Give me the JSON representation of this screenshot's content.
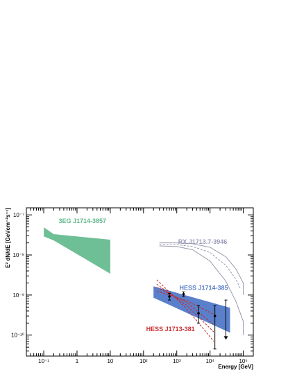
{
  "chart_data": {
    "type": "line",
    "xlabel": "Energy [GeV]",
    "ylabel": "E² dN/dE [GeVcm⁻²s⁻¹]",
    "xscale": "log",
    "yscale": "log",
    "xlim": [
      0.03,
      200000
    ],
    "ylim": [
      3e-11,
      1.5e-07
    ],
    "grid": false,
    "x_ticks": [
      {
        "v": 0.1,
        "label": "10⁻¹"
      },
      {
        "v": 1,
        "label": "1"
      },
      {
        "v": 10,
        "label": "10"
      },
      {
        "v": 100,
        "label": "10²"
      },
      {
        "v": 1000,
        "label": "10³"
      },
      {
        "v": 10000,
        "label": "10⁴"
      },
      {
        "v": 100000,
        "label": "10⁵"
      }
    ],
    "y_ticks": [
      {
        "v": 1e-10,
        "label": "10⁻¹⁰"
      },
      {
        "v": 1e-09,
        "label": "10⁻⁹"
      },
      {
        "v": 1e-08,
        "label": "10⁻⁸"
      },
      {
        "v": 1e-07,
        "label": "10⁻⁷"
      }
    ],
    "labels": [
      {
        "name": "3EG J1714-3857",
        "color": "#5fb88d",
        "x": 0.28,
        "y": 6.2e-08
      },
      {
        "name": "RX J1713.7-3946",
        "color": "#9a9ab8",
        "x": 1100,
        "y": 1.9e-08
      },
      {
        "name": "HESS J1714-385",
        "color": "#5a80c8",
        "x": 1200,
        "y": 1.35e-09
      },
      {
        "name": "HESS J1713-381",
        "color": "#cc3333",
        "x": 120,
        "y": 1.25e-10
      }
    ],
    "bands": [
      {
        "name": "3EG J1714-3857",
        "color": "#6fbf96",
        "points": [
          [
            0.1,
            4.9e-08
          ],
          [
            0.2,
            3.3e-08
          ],
          [
            10,
            2.4e-08
          ],
          [
            10,
            3.4e-09
          ],
          [
            0.2,
            2.3e-08
          ],
          [
            0.1,
            2.9e-08
          ]
        ]
      },
      {
        "name": "HESS J1714-385",
        "color": "#5a80cc",
        "points": [
          [
            200,
            1.65e-09
          ],
          [
            40000,
            4.8e-10
          ],
          [
            40000,
            1.15e-10
          ],
          [
            200,
            8.6e-10
          ]
        ]
      }
    ],
    "curves": [
      {
        "name": "RX J1713.7-3946 upper",
        "color": "#9898ac",
        "style": "solid",
        "points": [
          [
            300,
            2e-08
          ],
          [
            1000,
            2e-08
          ],
          [
            3000,
            1.9e-08
          ],
          [
            10000,
            1.55e-08
          ],
          [
            30000,
            9e-09
          ],
          [
            60000,
            4.5e-09
          ],
          [
            100000,
            2e-09
          ],
          [
            100000,
            1e-09
          ]
        ]
      },
      {
        "name": "RX J1713.7-3946 middle",
        "color": "#9898ac",
        "style": "dashed",
        "points": [
          [
            300,
            1.82e-08
          ],
          [
            1000,
            1.8e-08
          ],
          [
            3000,
            1.62e-08
          ],
          [
            10000,
            1.15e-08
          ],
          [
            30000,
            5.5e-09
          ],
          [
            60000,
            2.5e-09
          ],
          [
            80000,
            1.5e-09
          ]
        ]
      },
      {
        "name": "RX J1713.7-3946 lower",
        "color": "#9898ac",
        "style": "solid",
        "points": [
          [
            300,
            1.68e-08
          ],
          [
            1000,
            1.62e-08
          ],
          [
            3000,
            1.35e-08
          ],
          [
            10000,
            7e-09
          ],
          [
            30000,
            2.2e-09
          ],
          [
            60000,
            7e-10
          ],
          [
            100000,
            2.2e-10
          ],
          [
            100000,
            1e-10
          ]
        ]
      },
      {
        "name": "HESS J1713-381 line 1",
        "color": "#cc2222",
        "style": "dashed",
        "points": [
          [
            250,
            2.4e-09
          ],
          [
            2000,
            4.5e-10
          ],
          [
            13000,
            7e-11
          ]
        ]
      },
      {
        "name": "HESS J1713-381 line 2",
        "color": "#cc2222",
        "style": "dashed",
        "points": [
          [
            250,
            1.85e-09
          ],
          [
            2000,
            5.5e-10
          ],
          [
            13000,
            1.2e-10
          ]
        ]
      },
      {
        "name": "HESS J1713-381 line 3",
        "color": "#cc2222",
        "style": "dashed",
        "points": [
          [
            250,
            1.55e-09
          ],
          [
            2000,
            6.5e-10
          ],
          [
            13000,
            1.8e-10
          ]
        ]
      },
      {
        "name": "HESS J1713-381 line 4",
        "color": "#cc2222",
        "style": "dashed",
        "points": [
          [
            250,
            1.25e-09
          ],
          [
            2000,
            7.2e-10
          ],
          [
            13000,
            3.3e-10
          ]
        ]
      }
    ],
    "data_points": [
      {
        "x": 600,
        "y": 9.2e-10,
        "ylo": 7.5e-10,
        "yhi": 1.1e-09
      },
      {
        "x": 1600,
        "y": 1.05e-09,
        "ylo": 9.2e-10,
        "yhi": 1.2e-09
      },
      {
        "x": 4500,
        "y": 3.5e-10,
        "ylo": 2e-10,
        "yhi": 5.5e-10
      },
      {
        "x": 14000,
        "y": 3e-10,
        "ylo": 4.5e-11,
        "yhi": 5.5e-10
      }
    ],
    "upper_limit": {
      "x": 30000,
      "top": 7.5e-10,
      "bottom": 8e-11
    }
  }
}
